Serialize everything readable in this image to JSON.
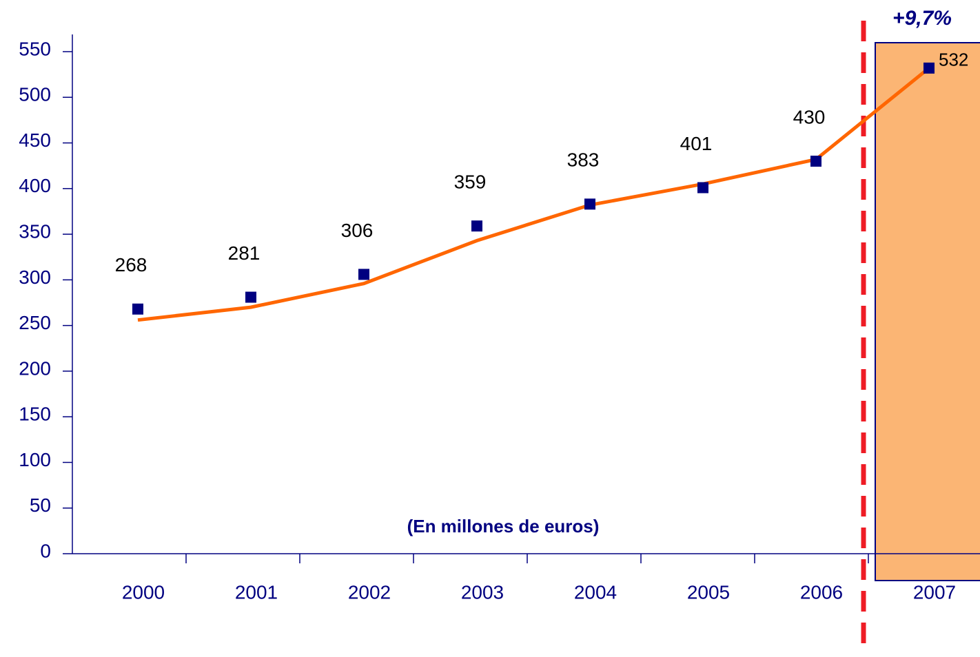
{
  "chart_data": {
    "type": "line",
    "annotation": "+9,7%",
    "axis_note": "(En millones de euros)",
    "categories": [
      "2000",
      "2001",
      "2002",
      "2003",
      "2004",
      "2005",
      "2006",
      "2007"
    ],
    "series": [
      {
        "name": "",
        "color": "#000080",
        "values": [
          268,
          281,
          306,
          359,
          383,
          401,
          430,
          532
        ]
      },
      {
        "color": "#ff6600",
        "values": [
          256,
          270,
          296,
          343,
          382,
          405,
          432,
          532
        ]
      }
    ],
    "ylim": [
      0,
      550
    ],
    "yticks": [
      0,
      50,
      100,
      150,
      200,
      250,
      300,
      350,
      400,
      450,
      500,
      550
    ],
    "highlight_color": "#fbb574",
    "divider_color": "#ee1c25"
  }
}
